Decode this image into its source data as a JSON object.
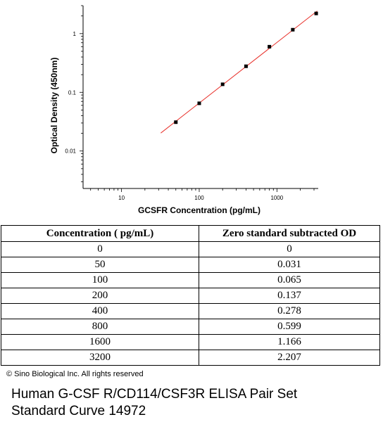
{
  "chart_data": {
    "type": "scatter",
    "xlabel": "GCSFR Concentration (pg/mL)",
    "ylabel": "Optical Density (450nm)",
    "x_scale": "log",
    "y_scale": "log",
    "xlim": [
      3.2,
      3400
    ],
    "ylim": [
      0.0023,
      3.0
    ],
    "x_ticks": [
      10,
      100,
      1000
    ],
    "x_tick_labels": [
      "10",
      "100",
      "1000"
    ],
    "y_ticks": [
      0.01,
      0.1,
      1
    ],
    "y_tick_labels": [
      "0.01",
      "0.1",
      "1"
    ],
    "grid": false,
    "points": [
      {
        "x": 50,
        "y": 0.031
      },
      {
        "x": 100,
        "y": 0.065
      },
      {
        "x": 200,
        "y": 0.137
      },
      {
        "x": 400,
        "y": 0.278
      },
      {
        "x": 800,
        "y": 0.599
      },
      {
        "x": 1600,
        "y": 1.166
      },
      {
        "x": 3200,
        "y": 2.207
      }
    ],
    "fit_line": {
      "x_start": 32,
      "x_end": 3300,
      "color": "#e8302a"
    },
    "marker_color": "#000000"
  },
  "table": {
    "headers": [
      "Concentration ( pg/mL)",
      "Zero standard subtracted OD"
    ],
    "rows": [
      [
        "0",
        "0"
      ],
      [
        "50",
        "0.031"
      ],
      [
        "100",
        "0.065"
      ],
      [
        "200",
        "0.137"
      ],
      [
        "400",
        "0.278"
      ],
      [
        "800",
        "0.599"
      ],
      [
        "1600",
        "1.166"
      ],
      [
        "3200",
        "2.207"
      ]
    ]
  },
  "copyright": "© Sino Biological Inc. All rights reserved",
  "caption": {
    "line1": "Human G-CSF R/CD114/CSF3R ELISA Pair Set",
    "line2": "Standard Curve 14972"
  }
}
